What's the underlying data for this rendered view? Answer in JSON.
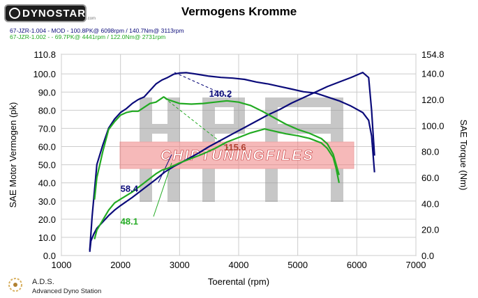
{
  "header": {
    "logo_text": "DYNOSTAR",
    "logo_sub": ".com",
    "title": "Vermogens Kromme",
    "run1": "67-JZR-1.004 - MOD  - 100.8PK@ 6098rpm / 140.7Nm@ 3113rpm",
    "run2": "67-JZR-1.002 -  - 69.7PK@ 4441rpm / 122.0Nm@ 2731rpm"
  },
  "footer": {
    "brand": "A.D.S.",
    "subtitle": "Advanced Dyno Station"
  },
  "watermark": {
    "text": "CHIPTUNINGFILES"
  },
  "colors": {
    "run1": "#0b0b7a",
    "run2": "#22aa22",
    "watermark_band": "#f08080",
    "grid": "#cccccc"
  },
  "chart_data": {
    "type": "line",
    "title": "Vermogens Kromme",
    "xlabel": "Toerental (rpm)",
    "ylabel": "SAE Motor Vermogen (pk)",
    "y2label": "SAE Torque (Nm)",
    "xlim": [
      1000,
      7000
    ],
    "ylim": [
      0,
      110.8
    ],
    "y2lim": [
      0,
      154.8
    ],
    "grid": true,
    "x_ticks": [
      "1000",
      "2000",
      "3000",
      "4000",
      "5000",
      "6000",
      "7000"
    ],
    "y_ticks": [
      "0.0",
      "10.0",
      "20.0",
      "30.0",
      "40.0",
      "50.0",
      "60.0",
      "70.0",
      "80.0",
      "90.0",
      "100.0",
      "110.8"
    ],
    "y2_ticks": [
      "0.0",
      "20.0",
      "40.0",
      "60.0",
      "80.0",
      "100.0",
      "120.0",
      "140.0",
      "154.8"
    ],
    "series": [
      {
        "name": "67-JZR-1.004 - MOD",
        "metric": "power",
        "axis": "left",
        "x": [
          1480,
          1500,
          1550,
          1600,
          1700,
          1800,
          1900,
          2000,
          2200,
          2400,
          2600,
          2750,
          2900,
          3100,
          3300,
          3500,
          3700,
          3900,
          4100,
          4300,
          4500,
          4700,
          4900,
          5100,
          5300,
          5500,
          5700,
          5900,
          6100,
          6200,
          6250,
          6300
        ],
        "y": [
          2,
          8,
          12,
          15,
          18.5,
          22,
          25,
          27.5,
          32,
          37,
          42,
          46,
          49,
          52.5,
          56,
          60,
          63.5,
          67,
          70.5,
          74,
          77.5,
          80.5,
          84,
          87,
          90,
          93,
          95.5,
          98,
          100.8,
          98,
          80,
          55
        ]
      },
      {
        "name": "67-JZR-1.004 - MOD",
        "metric": "torque",
        "axis": "right",
        "x": [
          1480,
          1520,
          1600,
          1700,
          1800,
          1900,
          2000,
          2100,
          2200,
          2300,
          2400,
          2500,
          2600,
          2700,
          2800,
          2900,
          3000,
          3113,
          3300,
          3500,
          3700,
          3900,
          4100,
          4300,
          4500,
          4700,
          4900,
          5100,
          5300,
          5500,
          5700,
          5900,
          6100,
          6200,
          6250,
          6300
        ],
        "y": [
          4,
          30,
          70,
          85,
          98,
          105,
          110,
          113,
          117,
          120,
          122,
          127,
          132,
          135,
          137,
          139.5,
          140.4,
          140.7,
          139.5,
          138,
          137,
          136.5,
          135.5,
          133.5,
          132,
          130,
          128,
          126,
          125,
          122,
          119,
          115,
          110,
          104,
          92,
          64
        ]
      },
      {
        "name": "67-JZR-1.002",
        "metric": "power",
        "axis": "left",
        "x": [
          1560,
          1600,
          1700,
          1800,
          1900,
          2000,
          2200,
          2400,
          2600,
          2700,
          2800,
          3000,
          3200,
          3400,
          3600,
          3800,
          4000,
          4200,
          4441,
          4600,
          4800,
          5000,
          5200,
          5400,
          5500,
          5600,
          5650,
          5700
        ],
        "y": [
          9,
          14,
          19.5,
          25,
          29,
          31,
          35,
          40,
          45,
          47,
          48,
          51,
          53.5,
          56,
          59,
          62.5,
          65,
          67.5,
          69.7,
          68.5,
          67,
          66,
          64.5,
          62,
          59,
          54,
          48,
          40
        ]
      },
      {
        "name": "67-JZR-1.002",
        "metric": "torque",
        "axis": "right",
        "x": [
          1560,
          1600,
          1700,
          1800,
          1900,
          2000,
          2100,
          2200,
          2300,
          2400,
          2500,
          2600,
          2731,
          2800,
          3000,
          3200,
          3400,
          3600,
          3800,
          4000,
          4200,
          4400,
          4600,
          4800,
          5000,
          5200,
          5400,
          5500,
          5600,
          5650,
          5700
        ],
        "y": [
          43,
          60,
          80,
          97,
          103,
          108,
          110,
          111,
          111,
          114,
          117,
          118,
          122,
          120,
          117,
          116.5,
          117,
          118,
          119,
          118,
          115.5,
          111,
          106,
          101,
          97,
          94,
          90,
          86,
          78,
          70,
          62
        ]
      }
    ],
    "annotations": [
      {
        "text": "140.2",
        "x": 3500,
        "y_axis": "right",
        "y": 122,
        "color": "#0b0b7a"
      },
      {
        "text": "115.6",
        "x": 3750,
        "y_axis": "right",
        "y": 81,
        "color": "#b04030"
      },
      {
        "text": "58.4",
        "x": 2000,
        "y_axis": "left",
        "y": 35,
        "color": "#0b0b7a"
      },
      {
        "text": "48.1",
        "x": 2000,
        "y_axis": "left",
        "y": 17,
        "color": "#22aa22"
      }
    ]
  }
}
